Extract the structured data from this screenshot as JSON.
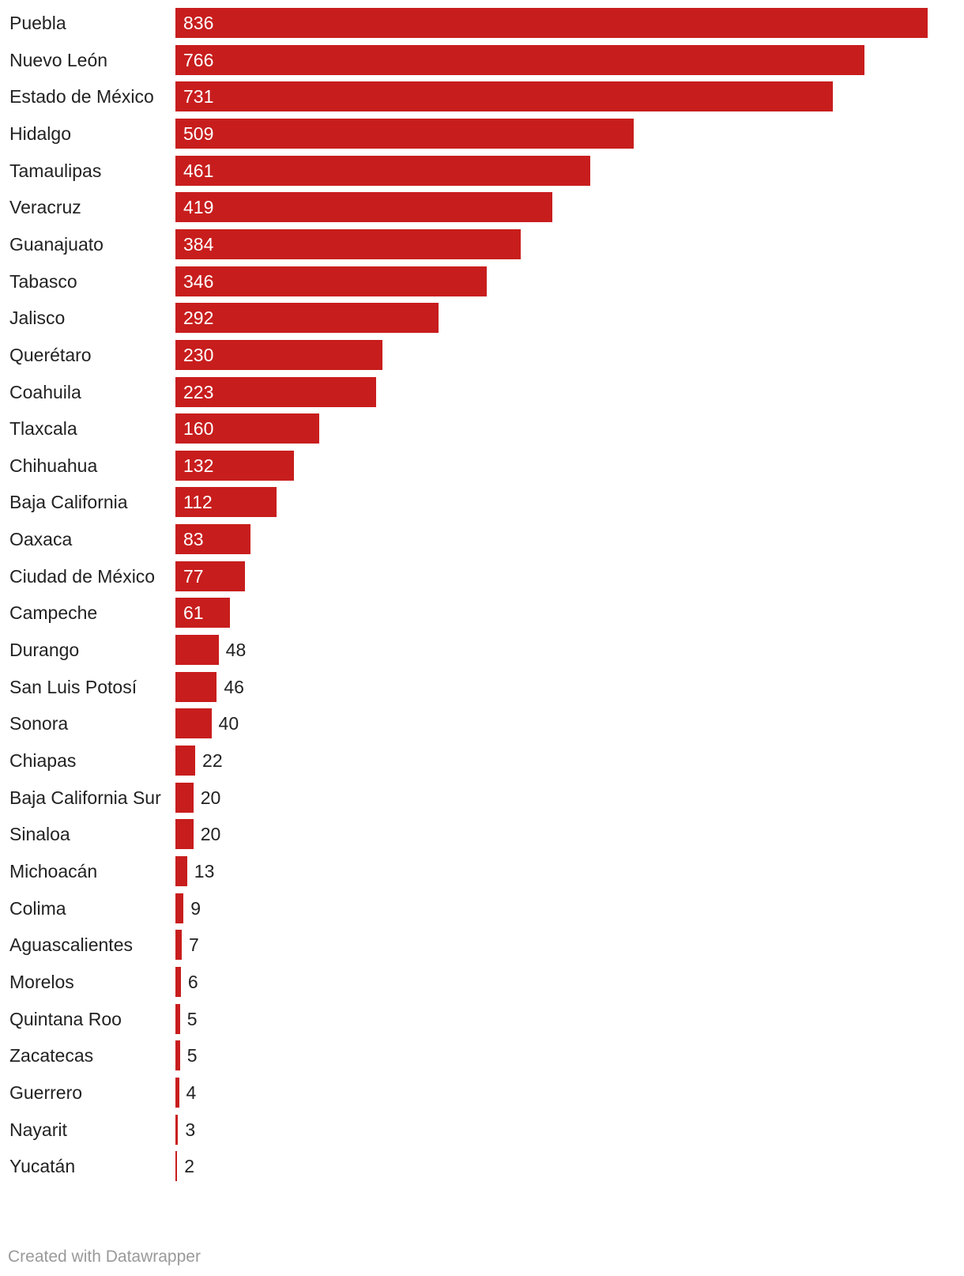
{
  "chart_data": {
    "type": "bar",
    "orientation": "horizontal",
    "bar_color": "#c81d1d",
    "categories": [
      "Puebla",
      "Nuevo León",
      "Estado de México",
      "Hidalgo",
      "Tamaulipas",
      "Veracruz",
      "Guanajuato",
      "Tabasco",
      "Jalisco",
      "Querétaro",
      "Coahuila",
      "Tlaxcala",
      "Chihuahua",
      "Baja California",
      "Oaxaca",
      "Ciudad de México",
      "Campeche",
      "Durango",
      "San Luis Potosí",
      "Sonora",
      "Chiapas",
      "Baja California Sur",
      "Sinaloa",
      "Michoacán",
      "Colima",
      "Aguascalientes",
      "Morelos",
      "Quintana Roo",
      "Zacatecas",
      "Guerrero",
      "Nayarit",
      "Yucatán"
    ],
    "values": [
      836,
      766,
      731,
      509,
      461,
      419,
      384,
      346,
      292,
      230,
      223,
      160,
      132,
      112,
      83,
      77,
      61,
      48,
      46,
      40,
      22,
      20,
      20,
      13,
      9,
      7,
      6,
      5,
      5,
      4,
      3,
      2
    ],
    "title": "",
    "xlabel": "",
    "ylabel": "",
    "grid": false,
    "legend": "none"
  },
  "footer": {
    "credit": "Created with Datawrapper"
  }
}
